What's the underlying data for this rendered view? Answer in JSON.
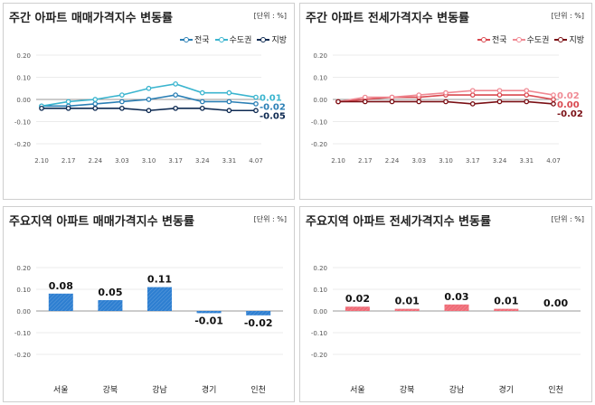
{
  "panels": {
    "tl": {
      "title": "주간 아파트 매매가격지수 변동률",
      "unit": "[단위 : %]"
    },
    "tr": {
      "title": "주간 아파트 전세가격지수 변동률",
      "unit": "[단위 : %]"
    },
    "bl": {
      "title": "주요지역 아파트 매매가격지수 변동률",
      "unit": "[단위 : %]"
    },
    "br": {
      "title": "주요지역 아파트 전세가격지수 변동률",
      "unit": "[단위 : %]"
    }
  },
  "chart_data": [
    {
      "type": "line",
      "title": "주간 아파트 매매가격지수 변동률",
      "categories": [
        "2.10",
        "2.17",
        "2.24",
        "3.03",
        "3.10",
        "3.17",
        "3.24",
        "3.31",
        "4.07"
      ],
      "ylim": [
        -0.2,
        0.2
      ],
      "yticks": [
        "0.20",
        "0.10",
        "0.00",
        "-0.10",
        "-0.20"
      ],
      "legend_position": "top-right",
      "series": [
        {
          "name": "전국",
          "color": "#2a7fb5",
          "values": [
            -0.03,
            -0.03,
            -0.02,
            -0.01,
            0.0,
            0.02,
            -0.01,
            -0.01,
            -0.02
          ],
          "end_label": "-0.02"
        },
        {
          "name": "수도권",
          "color": "#3bb5cf",
          "values": [
            -0.03,
            -0.01,
            0.0,
            0.02,
            0.05,
            0.07,
            0.03,
            0.03,
            0.01
          ],
          "end_label": "0.01"
        },
        {
          "name": "지방",
          "color": "#0e2a52",
          "values": [
            -0.04,
            -0.04,
            -0.04,
            -0.04,
            -0.05,
            -0.04,
            -0.04,
            -0.05,
            -0.05
          ],
          "end_label": "-0.05"
        }
      ]
    },
    {
      "type": "line",
      "title": "주간 아파트 전세가격지수 변동률",
      "categories": [
        "2.10",
        "2.17",
        "2.24",
        "3.03",
        "3.10",
        "3.17",
        "3.24",
        "3.31",
        "4.07"
      ],
      "ylim": [
        -0.2,
        0.2
      ],
      "yticks": [
        "0.20",
        "0.10",
        "0.00",
        "-0.10",
        "-0.20"
      ],
      "legend_position": "top-right",
      "series": [
        {
          "name": "전국",
          "color": "#d9484f",
          "values": [
            -0.01,
            0.0,
            0.01,
            0.01,
            0.02,
            0.02,
            0.02,
            0.02,
            0.0
          ],
          "end_label": "0.00"
        },
        {
          "name": "수도권",
          "color": "#f08a94",
          "values": [
            -0.01,
            0.01,
            0.01,
            0.02,
            0.03,
            0.04,
            0.04,
            0.04,
            0.02
          ],
          "end_label": "0.02"
        },
        {
          "name": "지방",
          "color": "#7a0f14",
          "values": [
            -0.01,
            -0.01,
            -0.01,
            -0.01,
            -0.01,
            -0.02,
            -0.01,
            -0.01,
            -0.02
          ],
          "end_label": "-0.02"
        }
      ]
    },
    {
      "type": "bar",
      "title": "주요지역 아파트 매매가격지수 변동률",
      "categories": [
        "서울",
        "강북",
        "강남",
        "경기",
        "인천"
      ],
      "values": [
        0.08,
        0.05,
        0.11,
        -0.01,
        -0.02
      ],
      "labels": [
        "0.08",
        "0.05",
        "0.11",
        "-0.01",
        "-0.02"
      ],
      "ylim": [
        -0.2,
        0.2
      ],
      "yticks": [
        "0.20",
        "0.10",
        "0.00",
        "-0.10",
        "-0.20"
      ],
      "color": "#2e7fd1"
    },
    {
      "type": "bar",
      "title": "주요지역 아파트 전세가격지수 변동률",
      "categories": [
        "서울",
        "강북",
        "강남",
        "경기",
        "인천"
      ],
      "values": [
        0.02,
        0.01,
        0.03,
        0.01,
        0.0
      ],
      "labels": [
        "0.02",
        "0.01",
        "0.03",
        "0.01",
        "0.00"
      ],
      "ylim": [
        -0.2,
        0.2
      ],
      "yticks": [
        "0.20",
        "0.10",
        "0.00",
        "-0.10",
        "-0.20"
      ],
      "color": "#ef6c77"
    }
  ]
}
